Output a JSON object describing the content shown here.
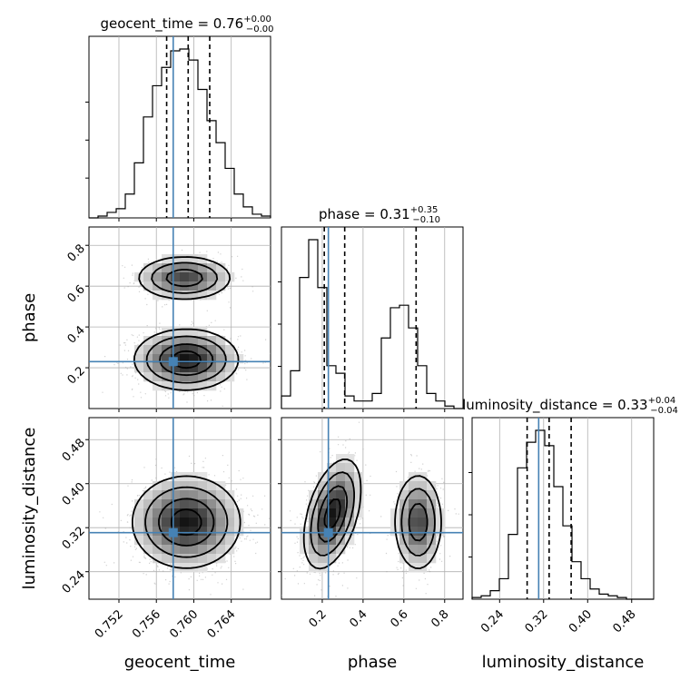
{
  "chart_data": {
    "type": "corner",
    "truth_color": "#4682b4",
    "line_color": "#000000",
    "parameters": [
      {
        "key": "geocent_time",
        "label": "geocent_time",
        "title": {
          "prefix": "geocent_time = 0.76",
          "sup": "+0.00",
          "sub": "−0.00"
        },
        "range": [
          0.7488,
          0.7682
        ],
        "ticks": [
          0.752,
          0.756,
          0.76,
          0.764
        ],
        "tick_labels": [
          "0.752",
          "0.756",
          "0.760",
          "0.764"
        ],
        "truth": 0.7578,
        "quantiles": [
          0.7571,
          0.7594,
          0.7617
        ],
        "hist": [
          0,
          1,
          3,
          5,
          13,
          30,
          55,
          72,
          82,
          91,
          92,
          86,
          70,
          53,
          41,
          27,
          13,
          6,
          2,
          1
        ]
      },
      {
        "key": "phase",
        "label": "phase",
        "title": {
          "prefix": "phase = 0.31",
          "sup": "+0.35",
          "sub": "−0.10"
        },
        "range": [
          0.0,
          0.89
        ],
        "ticks": [
          0.2,
          0.4,
          0.6,
          0.8
        ],
        "tick_labels": [
          "0.2",
          "0.4",
          "0.6",
          "0.8"
        ],
        "truth": 0.23,
        "quantiles": [
          0.21,
          0.31,
          0.66
        ],
        "hist": [
          5,
          15,
          52,
          67,
          48,
          17,
          14,
          5,
          3,
          3,
          6,
          28,
          40,
          41,
          32,
          17,
          6,
          3,
          1,
          0
        ]
      },
      {
        "key": "luminosity_distance",
        "label": "luminosity_distance",
        "title": {
          "prefix": "luminosity_distance = 0.33",
          "sup": "+0.04",
          "sub": "−0.04"
        },
        "range": [
          0.19,
          0.52
        ],
        "ticks": [
          0.24,
          0.32,
          0.4,
          0.48
        ],
        "tick_labels": [
          "0.24",
          "0.32",
          "0.40",
          "0.48"
        ],
        "truth": 0.311,
        "quantiles": [
          0.29,
          0.33,
          0.37
        ],
        "hist": [
          1,
          2,
          5,
          12,
          38,
          77,
          92,
          99,
          90,
          66,
          43,
          22,
          12,
          6,
          3,
          2,
          1,
          0,
          0,
          0
        ]
      }
    ],
    "truth_markers": [
      {
        "row": "phase",
        "col": "geocent_time",
        "x": 0.7578,
        "y": 0.23
      },
      {
        "row": "luminosity_distance",
        "col": "geocent_time",
        "x": 0.7578,
        "y": 0.311
      },
      {
        "row": "luminosity_distance",
        "col": "phase",
        "x": 0.23,
        "y": 0.311
      }
    ],
    "blobs_2d": [
      {
        "row": "phase",
        "col": "geocent_time",
        "cx": 0.759,
        "cy": 0.64,
        "sx": 0.0026,
        "sy": 0.055,
        "weight": 0.35
      },
      {
        "row": "phase",
        "col": "geocent_time",
        "cx": 0.7592,
        "cy": 0.24,
        "sx": 0.0028,
        "sy": 0.075,
        "weight": 0.65
      },
      {
        "row": "luminosity_distance",
        "col": "geocent_time",
        "cx": 0.7592,
        "cy": 0.33,
        "sx": 0.0029,
        "sy": 0.042,
        "weight": 1.0
      },
      {
        "row": "luminosity_distance",
        "col": "phase",
        "cx": 0.25,
        "cy": 0.345,
        "sx": 0.07,
        "sy": 0.05,
        "weight": 0.62,
        "rho": 0.45
      },
      {
        "row": "luminosity_distance",
        "col": "phase",
        "cx": 0.67,
        "cy": 0.33,
        "sx": 0.06,
        "sy": 0.045,
        "weight": 0.38
      }
    ]
  }
}
